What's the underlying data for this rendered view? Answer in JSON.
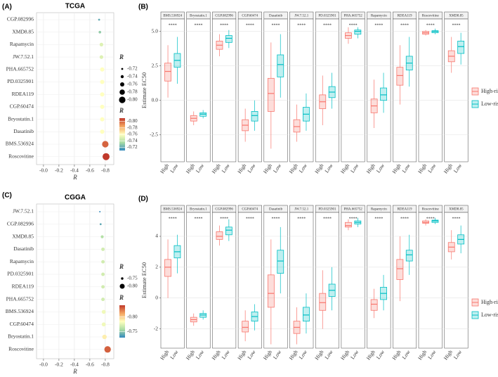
{
  "chart_data": [
    {
      "type": "dot",
      "panel_label": "(A)",
      "title": "TCGA",
      "categories": [
        "CGP.082996",
        "XMD8.85",
        "Rapamycin",
        "JW.7.52.1",
        "PHA.665752",
        "PD.0325901",
        "RDEA119",
        "CGP.60474",
        "Bryostatin.1",
        "Dasatinib",
        "BMS.536924",
        "Roscovitine"
      ],
      "values": [
        -0.72,
        -0.73,
        -0.75,
        -0.75,
        -0.76,
        -0.76,
        -0.76,
        -0.76,
        -0.76,
        -0.76,
        -0.8,
        -0.81
      ],
      "xlabel": "R",
      "xlim": [
        0.09,
        -0.91
      ],
      "xticks": [
        {
          "value": 0,
          "label": "-0.0"
        },
        -0.2,
        -0.4,
        -0.6,
        -0.8
      ],
      "grid": true,
      "size_legend": {
        "title": "R",
        "values": [
          -0.72,
          -0.74,
          -0.76,
          -0.78,
          {
            "value": -0.8,
            "label": "-0.80"
          }
        ]
      },
      "color_legend": {
        "title": "R",
        "ticks": [
          {
            "value": -0.8,
            "label": "-0.80"
          },
          -0.78,
          -0.76,
          -0.74,
          -0.72
        ]
      },
      "clim": [
        -0.81,
        -0.71
      ],
      "colors": [
        "#c0392b",
        "#f4a460",
        "#ffffbf",
        "#abdda4",
        "#3288bd"
      ]
    },
    {
      "type": "box",
      "panel_label": "(B)",
      "facets": [
        "BMS.536924",
        "Bryostatin.1",
        "CGP.082996",
        "CGP.60474",
        "Dasatinib",
        "JW.7.52.1",
        "PD.0325901",
        "PHA.665752",
        "Rapamycin",
        "RDEA119",
        "Roscovitine",
        "XMD8.85"
      ],
      "annotations": [
        "****",
        "****",
        "****",
        "****",
        "****",
        "****",
        "****",
        "****",
        "****",
        "****",
        "****",
        "****"
      ],
      "groups": [
        "High",
        "Low"
      ],
      "ylabel": "Estimate EC50",
      "ylim": [
        -4.45,
        5.9
      ],
      "yticks": [
        -2.5,
        {
          "value": 0,
          "label": "0.0"
        },
        2.5,
        {
          "value": 5,
          "label": "5.0"
        }
      ],
      "grid": true,
      "legend": "right",
      "series": [
        {
          "name": "High-risk",
          "color": "#f8766d",
          "whisker_low": [
            0.2,
            -1.8,
            3.2,
            -3.0,
            -3.5,
            -3.0,
            -1.8,
            4.1,
            -2.0,
            -0.3,
            4.7,
            2.0
          ],
          "q1": [
            1.4,
            -1.5,
            3.7,
            -2.2,
            -0.8,
            -2.3,
            -0.6,
            4.5,
            -0.9,
            1.1,
            4.8,
            2.8
          ],
          "median": [
            2.1,
            -1.3,
            4.0,
            -1.8,
            0.5,
            -1.9,
            -0.1,
            4.7,
            -0.4,
            1.8,
            4.9,
            3.2
          ],
          "q3": [
            2.7,
            -1.1,
            4.3,
            -1.4,
            1.6,
            -1.4,
            0.4,
            4.9,
            0.1,
            2.4,
            5.0,
            3.6
          ],
          "whisker_high": [
            4.0,
            -0.8,
            4.8,
            -0.6,
            4.2,
            -0.3,
            1.8,
            5.3,
            1.5,
            4.0,
            5.1,
            4.6
          ]
        },
        {
          "name": "Low-risk",
          "color": "#00bfc4",
          "whisker_low": [
            1.2,
            -1.3,
            3.8,
            -2.2,
            0.2,
            -2.2,
            -0.6,
            4.5,
            -0.9,
            1.0,
            4.8,
            2.6
          ],
          "q1": [
            2.4,
            -1.15,
            4.2,
            -1.5,
            1.7,
            -1.5,
            0.2,
            4.8,
            0.0,
            2.2,
            4.9,
            3.4
          ],
          "median": [
            2.9,
            -1.0,
            4.5,
            -1.1,
            2.6,
            -1.0,
            0.6,
            5.0,
            0.4,
            2.7,
            5.0,
            3.9
          ],
          "q3": [
            3.4,
            -0.9,
            4.7,
            -0.8,
            3.3,
            -0.5,
            1.0,
            5.1,
            0.9,
            3.2,
            5.05,
            4.3
          ],
          "whisker_high": [
            4.6,
            -0.7,
            5.1,
            0.0,
            4.8,
            0.5,
            2.0,
            5.3,
            2.0,
            4.6,
            5.2,
            4.9
          ]
        }
      ]
    },
    {
      "type": "dot",
      "panel_label": "(C)",
      "title": "CGGA",
      "categories": [
        "JW.7.52.1",
        "CGP.082996",
        "XMD8.85",
        "Dasatinib",
        "Rapamycin",
        "PD.0325901",
        "RDEA119",
        "PHA.665752",
        "BMS.536924",
        "CGP.60474",
        "Bryostatin.1",
        "Roscovitine"
      ],
      "values": [
        -0.73,
        -0.74,
        -0.76,
        -0.77,
        -0.77,
        -0.77,
        -0.77,
        -0.77,
        -0.78,
        -0.78,
        -0.79,
        -0.83
      ],
      "xlabel": "R",
      "xlim": [
        0.09,
        -0.91
      ],
      "xticks": [
        {
          "value": 0,
          "label": "-0.0"
        },
        -0.2,
        -0.4,
        -0.6,
        -0.8
      ],
      "grid": true,
      "size_legend": {
        "title": "R",
        "values": [
          -0.75,
          {
            "value": -0.8,
            "label": "-0.80"
          }
        ]
      },
      "color_legend": {
        "title": "R",
        "ticks": [
          {
            "value": -0.8,
            "label": "-0.80"
          },
          -0.75
        ]
      },
      "clim": [
        -0.84,
        -0.73
      ],
      "colors": [
        "#c0392b",
        "#f4a460",
        "#ffffbf",
        "#abdda4",
        "#3288bd"
      ]
    },
    {
      "type": "box",
      "panel_label": "(D)",
      "facets": [
        "BMS.536924",
        "Bryostatin.1",
        "CGP.082996",
        "CGP.60474",
        "Dasatinib",
        "JW.7.52.1",
        "PD.0325901",
        "PHA.665752",
        "Rapamycin",
        "RDEA119",
        "Roscovitine",
        "XMD8.85"
      ],
      "annotations": [
        "****",
        "****",
        "****",
        "****",
        "****",
        "****",
        "****",
        "****",
        "****",
        "****",
        "****",
        "****"
      ],
      "groups": [
        "High",
        "Low"
      ],
      "ylabel": "Estimate EC50",
      "ylim": [
        -3.25,
        5.55
      ],
      "yticks": [
        -2,
        0,
        2,
        4
      ],
      "grid": true,
      "legend": "right",
      "series": [
        {
          "name": "High-risk",
          "color": "#f8766d",
          "whisker_low": [
            0,
            -1.8,
            3.4,
            -2.8,
            -3.0,
            -3.0,
            -2.0,
            4.4,
            -1.3,
            -0.2,
            4.7,
            2.5
          ],
          "q1": [
            1.4,
            -1.55,
            3.8,
            -2.2,
            -0.6,
            -2.3,
            -0.8,
            4.6,
            -0.8,
            1.2,
            4.85,
            3.0
          ],
          "median": [
            2.0,
            -1.4,
            4.0,
            -1.9,
            0.3,
            -1.9,
            -0.3,
            4.7,
            -0.4,
            1.9,
            4.9,
            3.3
          ],
          "q3": [
            2.5,
            -1.25,
            4.3,
            -1.5,
            1.5,
            -1.5,
            0.3,
            4.9,
            -0.1,
            2.5,
            5.0,
            3.6
          ],
          "whisker_high": [
            3.8,
            -1.0,
            4.7,
            -0.8,
            3.8,
            -0.6,
            1.8,
            5.1,
            0.6,
            4.0,
            5.1,
            4.4
          ]
        },
        {
          "name": "Low-risk",
          "color": "#00bfc4",
          "whisker_low": [
            1.6,
            -1.4,
            3.7,
            -2.1,
            0.3,
            -2.3,
            -0.8,
            4.6,
            -0.8,
            1.5,
            4.8,
            2.9
          ],
          "q1": [
            2.6,
            -1.25,
            4.1,
            -1.5,
            1.6,
            -1.5,
            0.1,
            4.8,
            -0.1,
            2.4,
            4.9,
            3.5
          ],
          "median": [
            3.0,
            -1.1,
            4.4,
            -1.2,
            2.4,
            -1.1,
            0.5,
            4.9,
            0.3,
            2.8,
            5.0,
            3.8
          ],
          "q3": [
            3.4,
            -1.0,
            4.6,
            -0.9,
            3.1,
            -0.6,
            0.9,
            5.0,
            0.7,
            3.1,
            5.05,
            4.1
          ],
          "whisker_high": [
            4.1,
            -0.8,
            5.1,
            -0.4,
            4.6,
            0.3,
            2.0,
            5.2,
            1.5,
            4.1,
            5.2,
            4.7
          ]
        }
      ]
    }
  ]
}
